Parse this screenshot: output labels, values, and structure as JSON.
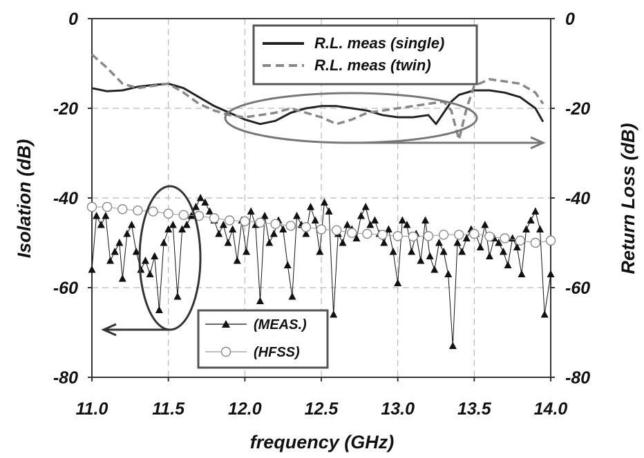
{
  "chart_data": {
    "type": "line",
    "xlabel": "frequency (GHz)",
    "ylabel_left": "Isolation (dB)",
    "ylabel_right": "Return Loss (dB)",
    "xlim": [
      11.0,
      14.0
    ],
    "ylim_left": [
      -80,
      0
    ],
    "ylim_right": [
      -80,
      0
    ],
    "x_ticks": [
      "11.0",
      "11.5",
      "12.0",
      "12.5",
      "13.0",
      "13.5",
      "14.0"
    ],
    "y_ticks_left": [
      "0",
      "-20",
      "-40",
      "-60",
      "-80"
    ],
    "y_ticks_right": [
      "0",
      "-20",
      "-40",
      "-60",
      "-80"
    ],
    "grid": true,
    "legend_top": {
      "placement": "top-center",
      "entries": [
        "R.L. meas (single)",
        "R.L. meas (twin)"
      ]
    },
    "legend_bottom": {
      "placement": "bottom-center",
      "entries": [
        "(MEAS.)",
        "(HFSS)"
      ]
    },
    "series": [
      {
        "name": "R.L. meas (single)",
        "axis": "right",
        "color": "#222222",
        "x": [
          11.0,
          11.1,
          11.2,
          11.3,
          11.4,
          11.5,
          11.6,
          11.7,
          11.8,
          11.9,
          12.0,
          12.1,
          12.2,
          12.3,
          12.4,
          12.5,
          12.6,
          12.7,
          12.8,
          12.9,
          13.0,
          13.1,
          13.2,
          13.25,
          13.3,
          13.35,
          13.4,
          13.5,
          13.6,
          13.7,
          13.8,
          13.9,
          13.95
        ],
        "y": [
          -15.5,
          -16.2,
          -16.0,
          -15.2,
          -14.8,
          -14.5,
          -15.5,
          -17.5,
          -19.5,
          -21.0,
          -22.5,
          -23.5,
          -22.8,
          -21.0,
          -20.0,
          -19.5,
          -19.5,
          -20.0,
          -20.5,
          -21.5,
          -22.0,
          -22.0,
          -21.5,
          -23.5,
          -21.0,
          -18.5,
          -17.0,
          -16.0,
          -16.0,
          -16.5,
          -17.5,
          -20.0,
          -23.0
        ]
      },
      {
        "name": "R.L. meas (twin)",
        "axis": "right",
        "color": "#888888",
        "x": [
          11.0,
          11.1,
          11.2,
          11.3,
          11.4,
          11.5,
          11.6,
          11.7,
          11.8,
          11.9,
          12.0,
          12.1,
          12.2,
          12.3,
          12.4,
          12.5,
          12.6,
          12.7,
          12.8,
          12.9,
          13.0,
          13.1,
          13.2,
          13.3,
          13.35,
          13.4,
          13.45,
          13.5,
          13.6,
          13.7,
          13.8,
          13.9,
          13.95
        ],
        "y": [
          -8.0,
          -11.0,
          -14.5,
          -15.5,
          -15.0,
          -14.5,
          -16.5,
          -19.0,
          -20.5,
          -21.5,
          -22.0,
          -21.5,
          -21.0,
          -20.0,
          -21.0,
          -22.0,
          -23.5,
          -22.5,
          -21.0,
          -20.5,
          -20.0,
          -19.5,
          -19.0,
          -18.5,
          -20.5,
          -27.0,
          -20.0,
          -15.0,
          -13.5,
          -14.0,
          -14.5,
          -16.5,
          -19.0
        ]
      },
      {
        "name": "(MEAS.)",
        "axis": "left",
        "color": "#111111",
        "marker": "triangle",
        "x": [
          11.0,
          11.03,
          11.06,
          11.09,
          11.12,
          11.15,
          11.18,
          11.2,
          11.23,
          11.26,
          11.29,
          11.32,
          11.35,
          11.38,
          11.41,
          11.44,
          11.47,
          11.5,
          11.53,
          11.56,
          11.59,
          11.62,
          11.65,
          11.68,
          11.71,
          11.74,
          11.77,
          11.8,
          11.83,
          11.86,
          11.89,
          11.92,
          11.95,
          11.98,
          12.01,
          12.04,
          12.07,
          12.1,
          12.13,
          12.16,
          12.19,
          12.22,
          12.25,
          12.28,
          12.31,
          12.34,
          12.37,
          12.4,
          12.43,
          12.46,
          12.49,
          12.52,
          12.55,
          12.58,
          12.61,
          12.64,
          12.67,
          12.7,
          12.73,
          12.76,
          12.79,
          12.82,
          12.85,
          12.88,
          12.91,
          12.94,
          12.97,
          13.0,
          13.03,
          13.06,
          13.09,
          13.12,
          13.15,
          13.18,
          13.21,
          13.24,
          13.27,
          13.3,
          13.33,
          13.36,
          13.39,
          13.42,
          13.45,
          13.48,
          13.51,
          13.54,
          13.57,
          13.6,
          13.63,
          13.66,
          13.69,
          13.72,
          13.75,
          13.78,
          13.81,
          13.84,
          13.87,
          13.9,
          13.93,
          13.96,
          14.0
        ],
        "y": [
          -56,
          -44,
          -46,
          -44,
          -54,
          -52,
          -50,
          -58,
          -48,
          -46,
          -52,
          -56,
          -54,
          -57,
          -53,
          -65,
          -50,
          -47,
          -46,
          -62,
          -47,
          -46,
          -44,
          -42,
          -40,
          -41,
          -43,
          -45,
          -48,
          -46,
          -50,
          -47,
          -54,
          -45,
          -52,
          -43,
          -46,
          -63,
          -44,
          -50,
          -48,
          -45,
          -47,
          -55,
          -62,
          -44,
          -46,
          -48,
          -42,
          -45,
          -52,
          -41,
          -43,
          -66,
          -48,
          -50,
          -46,
          -47,
          -49,
          -44,
          -42,
          -46,
          -45,
          -48,
          -50,
          -47,
          -52,
          -59,
          -45,
          -46,
          -52,
          -48,
          -54,
          -45,
          -53,
          -56,
          -50,
          -52,
          -57,
          -73,
          -50,
          -52,
          -49,
          -47,
          -48,
          -51,
          -46,
          -53,
          -49,
          -50,
          -52,
          -55,
          -49,
          -51,
          -57,
          -47,
          -45,
          -43,
          -47,
          -66,
          -57
        ]
      },
      {
        "name": "(HFSS)",
        "axis": "left",
        "color": "#999999",
        "marker": "circle",
        "x": [
          11.0,
          11.1,
          11.2,
          11.3,
          11.4,
          11.5,
          11.6,
          11.7,
          11.8,
          11.9,
          12.0,
          12.1,
          12.2,
          12.3,
          12.4,
          12.5,
          12.6,
          12.7,
          12.8,
          12.9,
          13.0,
          13.1,
          13.2,
          13.3,
          13.4,
          13.5,
          13.6,
          13.7,
          13.8,
          13.9,
          14.0
        ],
        "y": [
          -42.0,
          -42.0,
          -42.5,
          -42.8,
          -43.0,
          -43.5,
          -43.8,
          -44.0,
          -44.5,
          -45.0,
          -45.2,
          -45.5,
          -45.8,
          -46.2,
          -46.5,
          -47.0,
          -47.2,
          -47.8,
          -48.0,
          -48.2,
          -48.5,
          -48.6,
          -48.5,
          -48.2,
          -48.2,
          -48.0,
          -48.6,
          -49.0,
          -49.5,
          -50.0,
          -49.5
        ]
      }
    ]
  }
}
